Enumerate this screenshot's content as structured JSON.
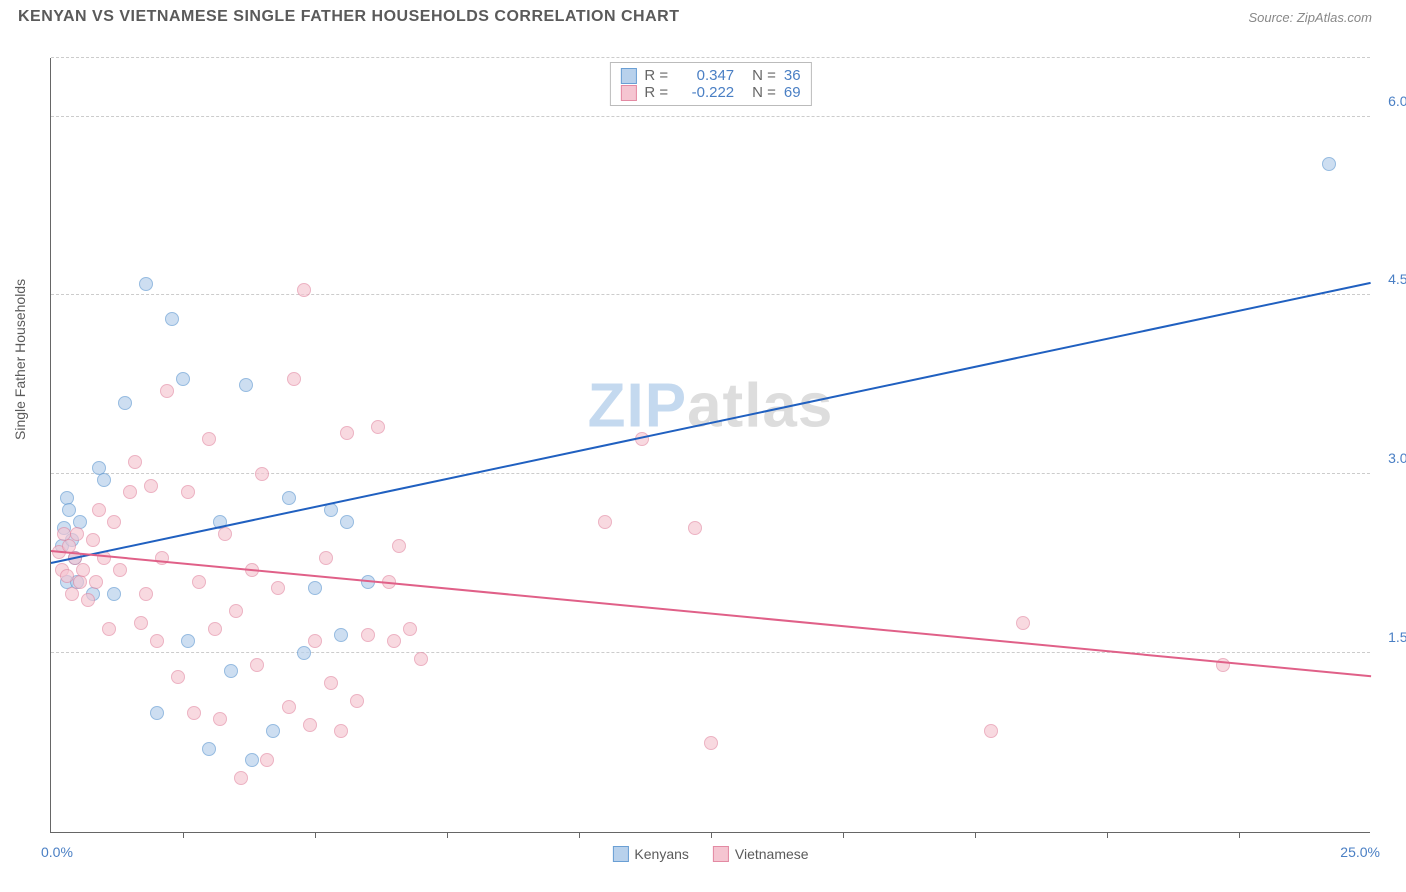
{
  "header": {
    "title": "KENYAN VS VIETNAMESE SINGLE FATHER HOUSEHOLDS CORRELATION CHART",
    "source_prefix": "Source: ",
    "source_name": "ZipAtlas.com"
  },
  "chart": {
    "type": "scatter",
    "y_axis_label": "Single Father Households",
    "xlim": [
      0,
      25
    ],
    "ylim": [
      0,
      6.5
    ],
    "x_min_label": "0.0%",
    "x_max_label": "25.0%",
    "x_ticks": [
      2.5,
      5,
      7.5,
      10,
      12.5,
      15,
      17.5,
      20,
      22.5
    ],
    "y_gridlines": [
      1.5,
      3.0,
      4.5,
      6.0
    ],
    "y_tick_labels": [
      "1.5%",
      "3.0%",
      "4.5%",
      "6.0%"
    ],
    "background_color": "#ffffff",
    "grid_color": "#cccccc",
    "axis_color": "#666666",
    "tick_label_color": "#4a7fc4",
    "series": [
      {
        "name": "Kenyans",
        "marker_fill": "#b8d1ec",
        "marker_stroke": "#6a9fd4",
        "marker_opacity": 0.7,
        "line_color": "#2060c0",
        "r_value": "0.347",
        "n_value": "36",
        "trend": {
          "x1": 0,
          "y1": 2.25,
          "x2": 25,
          "y2": 4.6
        },
        "points": [
          [
            0.2,
            2.4
          ],
          [
            0.25,
            2.55
          ],
          [
            0.3,
            2.8
          ],
          [
            0.3,
            2.1
          ],
          [
            0.35,
            2.7
          ],
          [
            0.4,
            2.45
          ],
          [
            0.45,
            2.3
          ],
          [
            0.5,
            2.1
          ],
          [
            0.55,
            2.6
          ],
          [
            0.8,
            2.0
          ],
          [
            0.9,
            3.05
          ],
          [
            1.0,
            2.95
          ],
          [
            1.2,
            2.0
          ],
          [
            1.4,
            3.6
          ],
          [
            1.8,
            4.6
          ],
          [
            2.0,
            1.0
          ],
          [
            2.3,
            4.3
          ],
          [
            2.5,
            3.8
          ],
          [
            2.6,
            1.6
          ],
          [
            3.0,
            0.7
          ],
          [
            3.2,
            2.6
          ],
          [
            3.4,
            1.35
          ],
          [
            3.7,
            3.75
          ],
          [
            3.8,
            0.6
          ],
          [
            4.2,
            0.85
          ],
          [
            4.5,
            2.8
          ],
          [
            4.8,
            1.5
          ],
          [
            5.0,
            2.05
          ],
          [
            5.3,
            2.7
          ],
          [
            5.5,
            1.65
          ],
          [
            5.6,
            2.6
          ],
          [
            6.0,
            2.1
          ],
          [
            24.2,
            5.6
          ]
        ]
      },
      {
        "name": "Vietnamese",
        "marker_fill": "#f5c5d1",
        "marker_stroke": "#e38aa3",
        "marker_opacity": 0.65,
        "line_color": "#e06088",
        "r_value": "-0.222",
        "n_value": "69",
        "trend": {
          "x1": 0,
          "y1": 2.35,
          "x2": 25,
          "y2": 1.3
        },
        "points": [
          [
            0.15,
            2.35
          ],
          [
            0.2,
            2.2
          ],
          [
            0.25,
            2.5
          ],
          [
            0.3,
            2.15
          ],
          [
            0.35,
            2.4
          ],
          [
            0.4,
            2.0
          ],
          [
            0.45,
            2.3
          ],
          [
            0.5,
            2.5
          ],
          [
            0.55,
            2.1
          ],
          [
            0.6,
            2.2
          ],
          [
            0.7,
            1.95
          ],
          [
            0.8,
            2.45
          ],
          [
            0.85,
            2.1
          ],
          [
            0.9,
            2.7
          ],
          [
            1.0,
            2.3
          ],
          [
            1.1,
            1.7
          ],
          [
            1.2,
            2.6
          ],
          [
            1.3,
            2.2
          ],
          [
            1.5,
            2.85
          ],
          [
            1.6,
            3.1
          ],
          [
            1.7,
            1.75
          ],
          [
            1.8,
            2.0
          ],
          [
            1.9,
            2.9
          ],
          [
            2.0,
            1.6
          ],
          [
            2.1,
            2.3
          ],
          [
            2.2,
            3.7
          ],
          [
            2.4,
            1.3
          ],
          [
            2.6,
            2.85
          ],
          [
            2.7,
            1.0
          ],
          [
            2.8,
            2.1
          ],
          [
            3.0,
            3.3
          ],
          [
            3.1,
            1.7
          ],
          [
            3.2,
            0.95
          ],
          [
            3.3,
            2.5
          ],
          [
            3.5,
            1.85
          ],
          [
            3.6,
            0.45
          ],
          [
            3.8,
            2.2
          ],
          [
            3.9,
            1.4
          ],
          [
            4.0,
            3.0
          ],
          [
            4.1,
            0.6
          ],
          [
            4.3,
            2.05
          ],
          [
            4.5,
            1.05
          ],
          [
            4.6,
            3.8
          ],
          [
            4.8,
            4.55
          ],
          [
            4.9,
            0.9
          ],
          [
            5.0,
            1.6
          ],
          [
            5.2,
            2.3
          ],
          [
            5.3,
            1.25
          ],
          [
            5.5,
            0.85
          ],
          [
            5.6,
            3.35
          ],
          [
            5.8,
            1.1
          ],
          [
            6.0,
            1.65
          ],
          [
            6.2,
            3.4
          ],
          [
            6.4,
            2.1
          ],
          [
            6.5,
            1.6
          ],
          [
            6.6,
            2.4
          ],
          [
            6.8,
            1.7
          ],
          [
            7.0,
            1.45
          ],
          [
            10.5,
            2.6
          ],
          [
            11.2,
            3.3
          ],
          [
            12.2,
            2.55
          ],
          [
            12.5,
            0.75
          ],
          [
            17.8,
            0.85
          ],
          [
            18.4,
            1.75
          ],
          [
            22.2,
            1.4
          ]
        ]
      }
    ]
  },
  "watermark": {
    "part1": "ZIP",
    "part2": "atlas"
  },
  "legend_labels": {
    "r_prefix": "R =",
    "n_prefix": "N ="
  }
}
